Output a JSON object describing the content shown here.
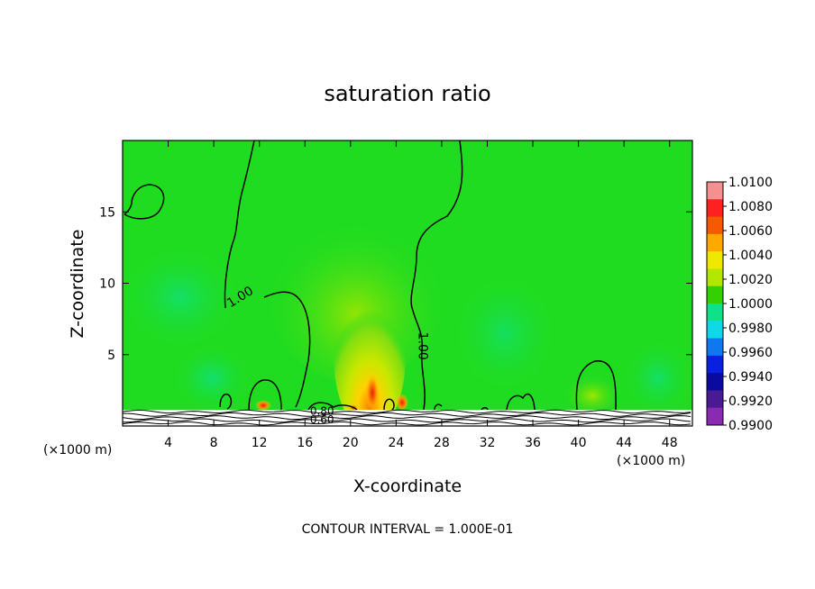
{
  "chart_data": {
    "type": "heatmap",
    "title": "saturation ratio",
    "xlabel": "X-coordinate",
    "ylabel": "Z-coordinate",
    "x_unit": "(×1000 m)",
    "x_ticks": [
      4,
      8,
      12,
      16,
      20,
      24,
      28,
      32,
      36,
      40,
      44,
      48
    ],
    "y_ticks": [
      5,
      10,
      15
    ],
    "xlim": [
      0,
      50
    ],
    "ylim": [
      0,
      20
    ],
    "footer": "CONTOUR INTERVAL = 1.000E-01",
    "contour_labels": [
      {
        "text": "1.00",
        "x": 10.5,
        "z": 8.8
      },
      {
        "text": "1.00",
        "x": 26.0,
        "z": 5.6
      },
      {
        "text": "0.80",
        "x": 17.5,
        "z": 0.8
      },
      {
        "text": "0.60",
        "x": 17.5,
        "z": 0.2
      }
    ],
    "colorbar": {
      "labels": [
        "1.0100",
        "1.0080",
        "1.0060",
        "1.0040",
        "1.0020",
        "1.0000",
        "0.9980",
        "0.9960",
        "0.9940",
        "0.9920",
        "0.9900"
      ],
      "colors": [
        "#f59090",
        "#ff2020",
        "#f55a00",
        "#ffa800",
        "#f0e800",
        "#b4e600",
        "#34d000",
        "#10e08a",
        "#10d8e8",
        "#0e78f0",
        "#0a20e0",
        "#0a0aa0",
        "#4a1a90",
        "#8a2ab0"
      ]
    },
    "background_color": "#20dc20",
    "hotspots": [
      {
        "x": 22.0,
        "z": 1.6,
        "value": 1.006
      },
      {
        "x": 24.5,
        "z": 1.2,
        "value": 1.005
      },
      {
        "x": 12.5,
        "z": 0.7,
        "value": 1.004
      },
      {
        "x": 42.0,
        "z": 1.5,
        "value": 1.002
      }
    ]
  }
}
